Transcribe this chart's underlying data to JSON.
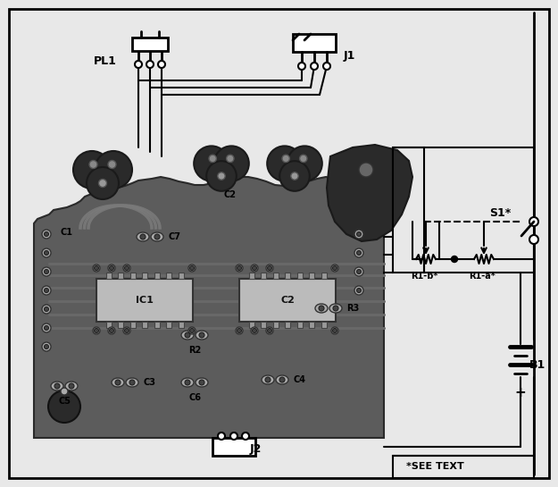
{
  "bg_color": "#c8c8c8",
  "white_bg": "#e8e8e8",
  "pcb_dark": "#4a4a4a",
  "pcb_mid": "#6a6a6a",
  "pcb_light": "#8a8a8a",
  "label_PL1": "PL1",
  "label_J1": "J1",
  "label_J2": "J2",
  "label_S1": "S1*",
  "label_R1b": "R1-b*",
  "label_R1a": "R1-a*",
  "label_B1": "B1",
  "label_see_text": "*SEE TEXT",
  "label_IC1": "IC1",
  "label_C2_chip": "C2",
  "label_R2": "R2",
  "label_R3": "R3",
  "label_C1": "C1",
  "label_C2t": "C2",
  "label_C3": "C3",
  "label_C4": "C4",
  "label_C5": "C5",
  "label_C6": "C6",
  "label_C7": "C7",
  "figsize": [
    6.25,
    5.45
  ],
  "dpi": 100
}
